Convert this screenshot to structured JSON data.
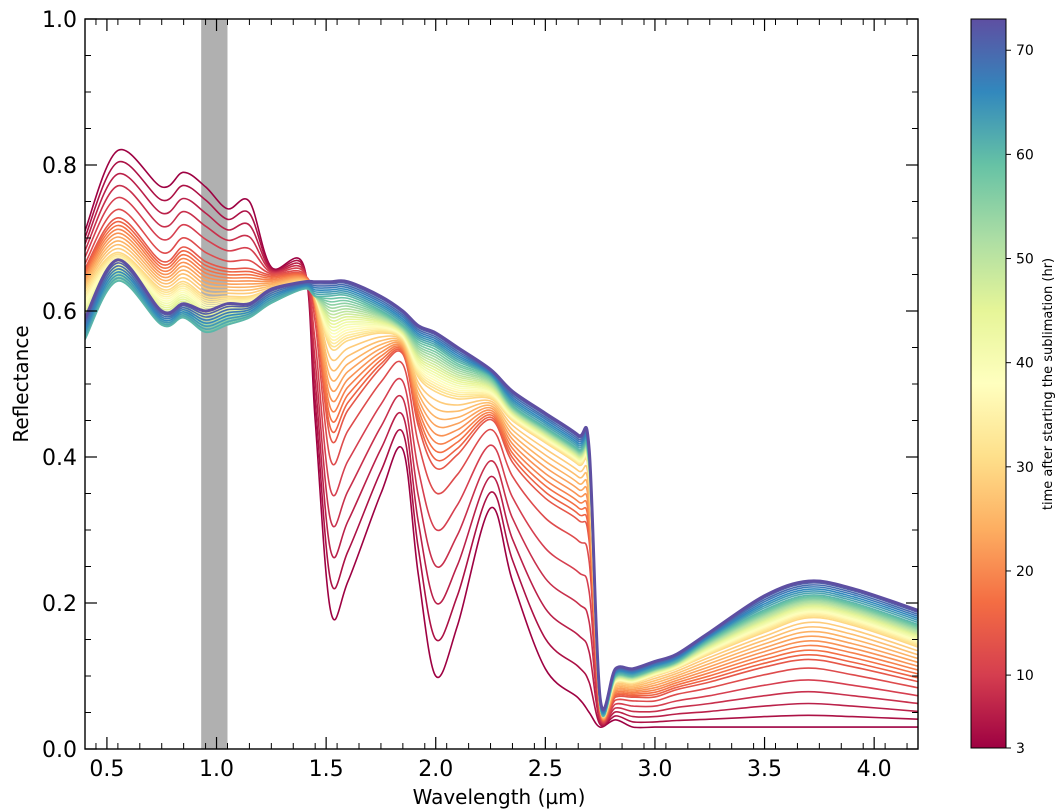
{
  "chart_data": {
    "type": "line",
    "title": "",
    "xlabel": "Wavelength (µm)",
    "ylabel": "Reflectance",
    "xlim": [
      0.4,
      4.2
    ],
    "ylim": [
      0.0,
      1.0
    ],
    "x_ticks": [
      "0.5",
      "1.0",
      "1.5",
      "2.0",
      "2.5",
      "3.0",
      "3.5",
      "4.0"
    ],
    "y_ticks": [
      "0.0",
      "0.2",
      "0.4",
      "0.6",
      "0.8",
      "1.0"
    ],
    "shaded_band": {
      "x_start": 0.93,
      "x_end": 1.05,
      "color": "#b0b0b0"
    },
    "colormap": "Spectral",
    "colorbar": {
      "label": "time after starting the sublimation (hr)",
      "range": [
        3,
        73
      ],
      "ticks": [
        "3",
        "10",
        "20",
        "30",
        "40",
        "50",
        "60",
        "70"
      ]
    },
    "n_series": 40,
    "x": [
      0.4,
      0.55,
      0.75,
      0.85,
      0.95,
      1.05,
      1.15,
      1.25,
      1.4,
      1.45,
      1.52,
      1.6,
      1.75,
      1.85,
      1.92,
      2.0,
      2.1,
      2.25,
      2.35,
      2.5,
      2.65,
      2.7,
      2.75,
      2.82,
      2.9,
      3.0,
      3.1,
      3.25,
      3.5,
      3.7,
      3.9,
      4.2
    ],
    "series": [
      {
        "time_hr": 3,
        "values": [
          0.71,
          0.82,
          0.77,
          0.79,
          0.77,
          0.74,
          0.75,
          0.66,
          0.66,
          0.45,
          0.19,
          0.23,
          0.35,
          0.41,
          0.24,
          0.1,
          0.17,
          0.33,
          0.23,
          0.11,
          0.07,
          0.05,
          0.03,
          0.04,
          0.03,
          0.03,
          0.03,
          0.03,
          0.03,
          0.03,
          0.03,
          0.03
        ]
      },
      {
        "time_hr": 13,
        "values": [
          0.66,
          0.73,
          0.67,
          0.69,
          0.67,
          0.66,
          0.66,
          0.65,
          0.65,
          0.6,
          0.42,
          0.46,
          0.52,
          0.54,
          0.44,
          0.38,
          0.4,
          0.45,
          0.39,
          0.34,
          0.31,
          0.28,
          0.05,
          0.07,
          0.07,
          0.07,
          0.08,
          0.09,
          0.11,
          0.12,
          0.11,
          0.09
        ]
      },
      {
        "time_hr": 30,
        "values": [
          0.63,
          0.68,
          0.63,
          0.64,
          0.62,
          0.62,
          0.62,
          0.63,
          0.64,
          0.62,
          0.55,
          0.56,
          0.57,
          0.56,
          0.51,
          0.49,
          0.48,
          0.48,
          0.45,
          0.42,
          0.39,
          0.37,
          0.06,
          0.09,
          0.09,
          0.1,
          0.11,
          0.13,
          0.16,
          0.18,
          0.17,
          0.14
        ]
      },
      {
        "time_hr": 60,
        "values": [
          0.56,
          0.64,
          0.58,
          0.59,
          0.57,
          0.58,
          0.59,
          0.61,
          0.63,
          0.62,
          0.62,
          0.62,
          0.6,
          0.58,
          0.56,
          0.55,
          0.53,
          0.51,
          0.47,
          0.44,
          0.41,
          0.39,
          0.06,
          0.1,
          0.1,
          0.11,
          0.12,
          0.15,
          0.19,
          0.21,
          0.2,
          0.17
        ]
      },
      {
        "time_hr": 73,
        "values": [
          0.59,
          0.67,
          0.6,
          0.61,
          0.6,
          0.61,
          0.61,
          0.63,
          0.64,
          0.64,
          0.64,
          0.64,
          0.62,
          0.6,
          0.58,
          0.57,
          0.55,
          0.52,
          0.49,
          0.46,
          0.43,
          0.41,
          0.07,
          0.11,
          0.11,
          0.12,
          0.13,
          0.16,
          0.21,
          0.23,
          0.22,
          0.19
        ]
      }
    ]
  }
}
